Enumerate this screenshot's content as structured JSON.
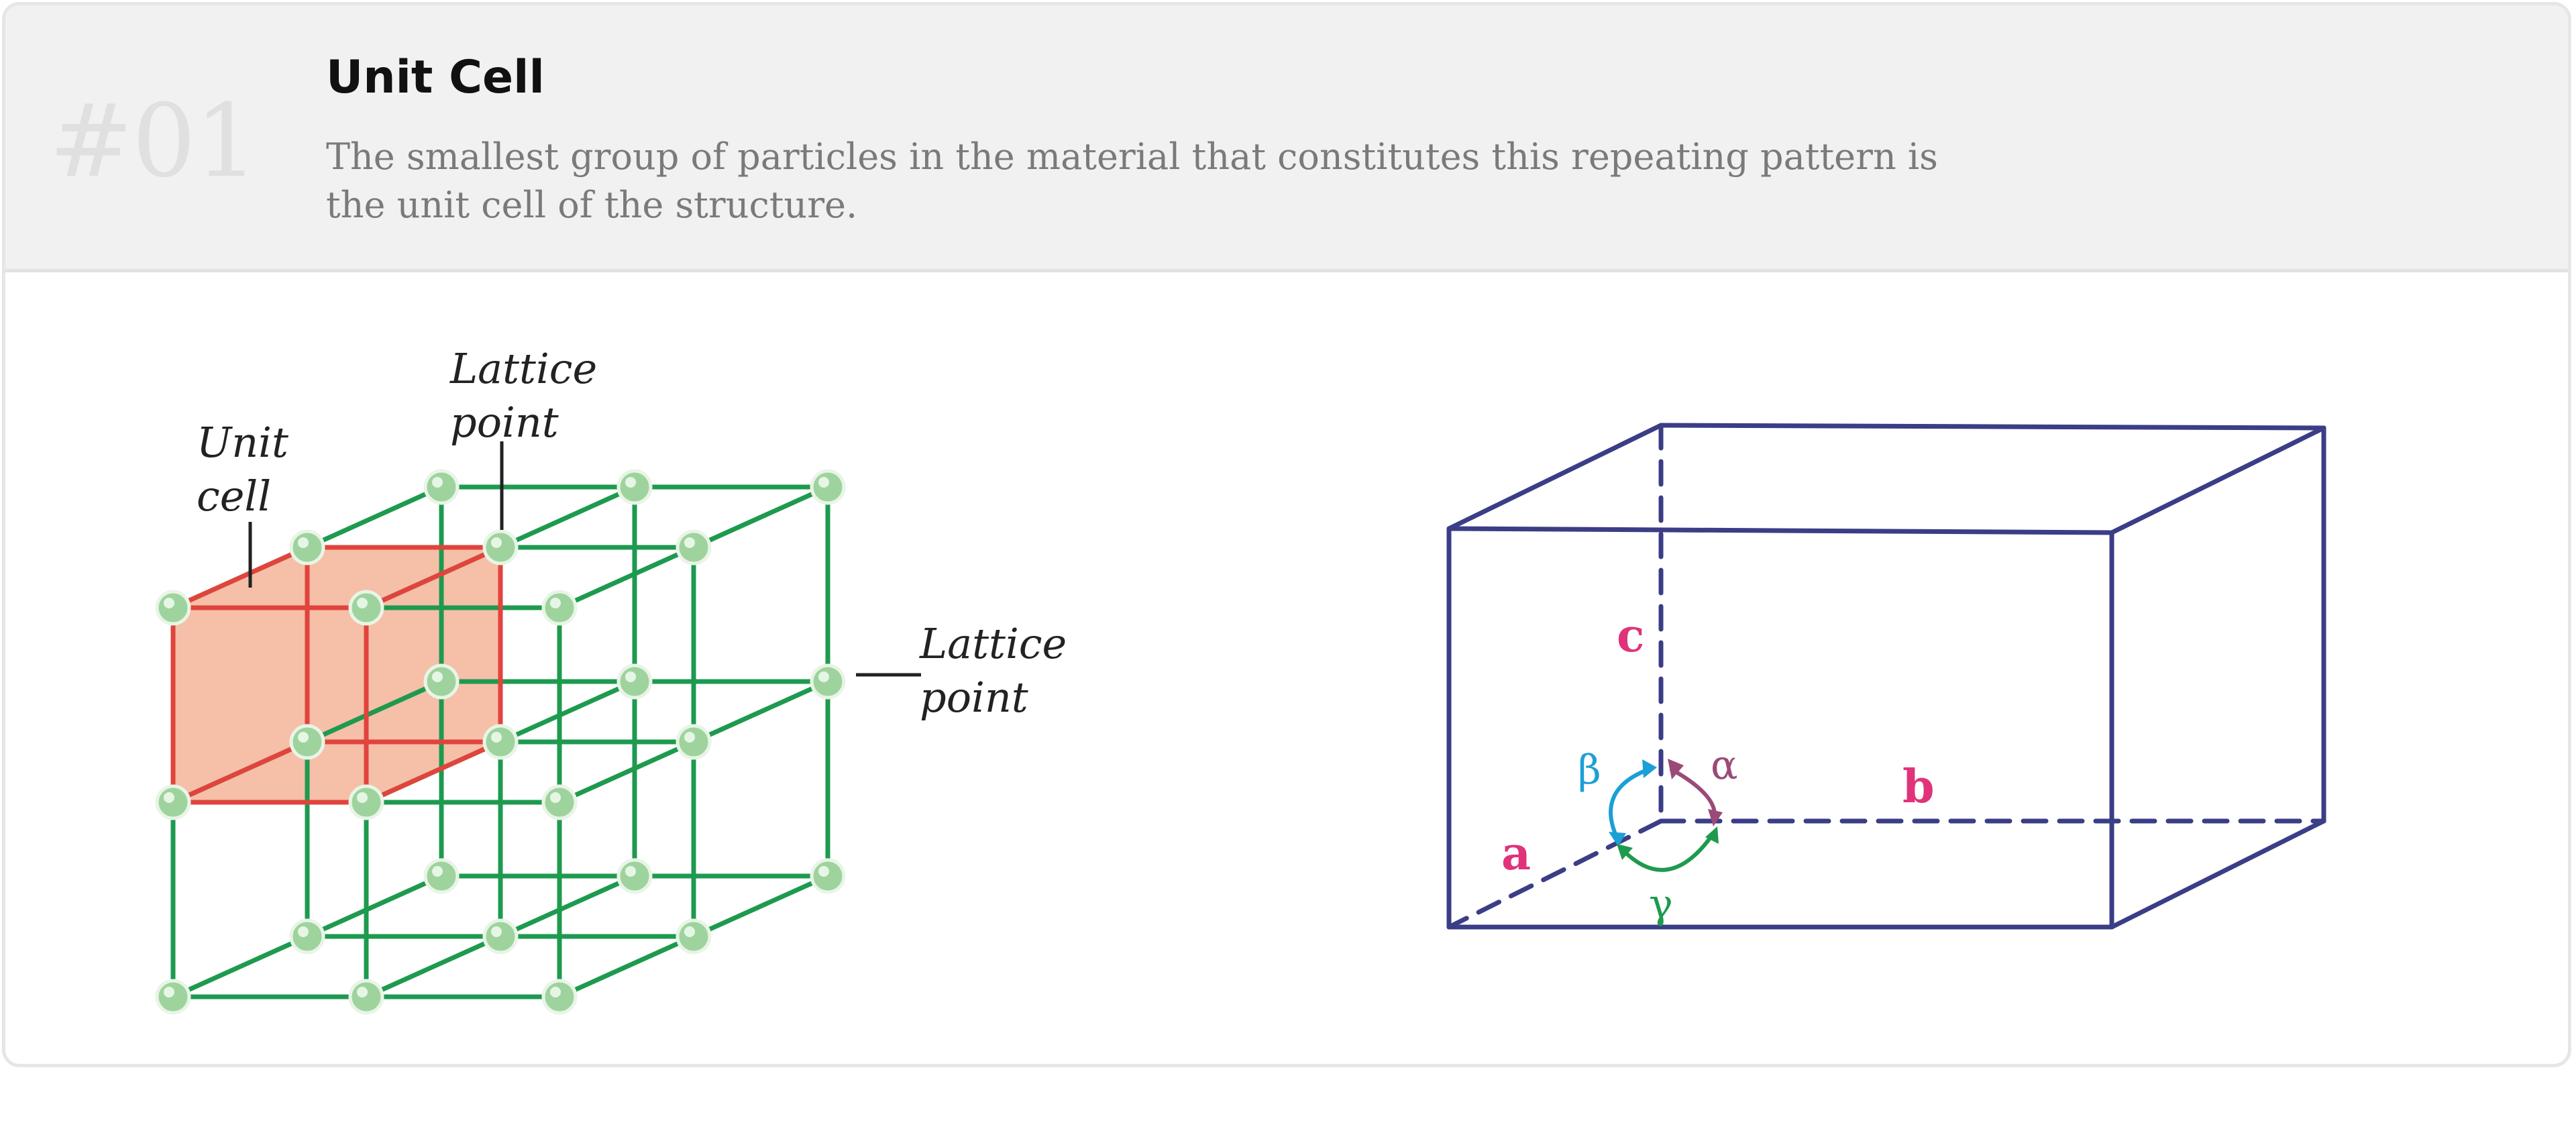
{
  "header": {
    "number": "#01",
    "title": "Unit Cell",
    "description": "The smallest group of particles in the material that constitutes this repeating pattern is the unit cell of the structure."
  },
  "lattice_diagram": {
    "label_unit_cell": [
      "Unit",
      "cell"
    ],
    "label_lattice_point_top": [
      "Lattice",
      "point"
    ],
    "label_lattice_point_right": [
      "Lattice",
      "point"
    ],
    "colors": {
      "lattice_lines": "#1e9a4f",
      "unit_cell_edges": "#e0443c",
      "unit_cell_fill": "#f5bfa8",
      "lattice_points": "#9fd39e"
    }
  },
  "cell_diagram": {
    "edge_labels": {
      "a": "a",
      "b": "b",
      "c": "c"
    },
    "angle_labels": {
      "alpha": "α",
      "beta": "β",
      "gamma": "γ"
    },
    "colors": {
      "box": "#3b3d86",
      "edge_labels": "#e0337a",
      "alpha": "#9b4a78",
      "beta": "#1c9fd6",
      "gamma": "#1e9a4f"
    }
  }
}
